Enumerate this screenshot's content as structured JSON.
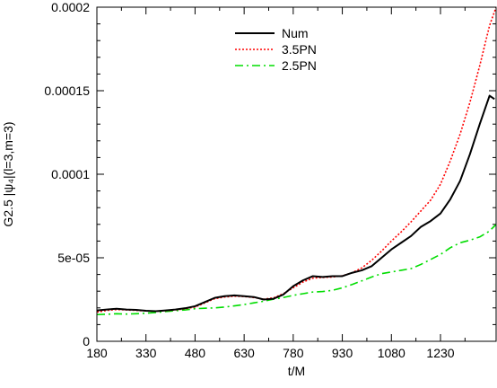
{
  "chart_data": {
    "type": "line",
    "xlabel": "t/M",
    "ylabel": "G2.5 |ψ₄|(l=3,m=3)",
    "xlim": [
      180,
      1400
    ],
    "ylim": [
      0,
      0.0002
    ],
    "xticks": [
      {
        "value": 180,
        "label": "180"
      },
      {
        "value": 330,
        "label": "330"
      },
      {
        "value": 480,
        "label": "480"
      },
      {
        "value": 630,
        "label": "630"
      },
      {
        "value": 780,
        "label": "780"
      },
      {
        "value": 930,
        "label": "930"
      },
      {
        "value": 1080,
        "label": "1080"
      },
      {
        "value": 1230,
        "label": "1230"
      }
    ],
    "yticks": [
      {
        "value": 0,
        "label": "0"
      },
      {
        "value": 5e-05,
        "label": "5e-05"
      },
      {
        "value": 0.0001,
        "label": "0.0001"
      },
      {
        "value": 0.00015,
        "label": "0.00015"
      },
      {
        "value": 0.0002,
        "label": "0.0002"
      }
    ],
    "legend_position": "top-center",
    "series": [
      {
        "name": "Num",
        "color": "#000000",
        "style": "solid",
        "x": [
          180,
          210,
          240,
          270,
          300,
          330,
          360,
          390,
          420,
          450,
          480,
          510,
          540,
          570,
          600,
          630,
          660,
          690,
          720,
          750,
          780,
          810,
          840,
          870,
          900,
          930,
          960,
          990,
          1020,
          1050,
          1080,
          1110,
          1140,
          1170,
          1200,
          1230,
          1260,
          1290,
          1320,
          1350,
          1380,
          1395
        ],
        "y": [
          1.85e-05,
          1.9e-05,
          1.95e-05,
          1.9e-05,
          1.88e-05,
          1.83e-05,
          1.8e-05,
          1.85e-05,
          1.9e-05,
          1.98e-05,
          2.1e-05,
          2.35e-05,
          2.6e-05,
          2.7e-05,
          2.75e-05,
          2.7e-05,
          2.65e-05,
          2.5e-05,
          2.55e-05,
          2.8e-05,
          3.3e-05,
          3.65e-05,
          3.9e-05,
          3.85e-05,
          3.9e-05,
          3.9e-05,
          4.1e-05,
          4.25e-05,
          4.5e-05,
          5e-05,
          5.5e-05,
          5.9e-05,
          6.3e-05,
          6.85e-05,
          7.2e-05,
          7.65e-05,
          8.5e-05,
          9.6e-05,
          0.000112,
          0.00013,
          0.000147,
          0.000145
        ]
      },
      {
        "name": "3.5PN",
        "color": "#ff0000",
        "style": "dotted",
        "x": [
          180,
          210,
          240,
          270,
          300,
          330,
          360,
          390,
          420,
          450,
          480,
          510,
          540,
          570,
          600,
          630,
          660,
          690,
          720,
          750,
          780,
          810,
          840,
          870,
          900,
          930,
          960,
          990,
          1020,
          1050,
          1080,
          1110,
          1140,
          1170,
          1200,
          1230,
          1260,
          1290,
          1320,
          1350,
          1380,
          1400
        ],
        "y": [
          1.75e-05,
          1.85e-05,
          1.9e-05,
          1.88e-05,
          1.85e-05,
          1.82e-05,
          1.8e-05,
          1.83e-05,
          1.88e-05,
          1.95e-05,
          2.05e-05,
          2.3e-05,
          2.55e-05,
          2.65e-05,
          2.7e-05,
          2.68e-05,
          2.62e-05,
          2.52e-05,
          2.6e-05,
          2.85e-05,
          3.2e-05,
          3.55e-05,
          3.78e-05,
          3.82e-05,
          3.85e-05,
          3.92e-05,
          4.1e-05,
          4.4e-05,
          4.85e-05,
          5.4e-05,
          6e-05,
          6.55e-05,
          7.15e-05,
          7.8e-05,
          8.45e-05,
          9.4e-05,
          0.000108,
          0.000124,
          0.000143,
          0.000165,
          0.000189,
          0.0002
        ]
      },
      {
        "name": "2.5PN",
        "color": "#00dd00",
        "style": "dashdot",
        "x": [
          180,
          210,
          240,
          270,
          300,
          330,
          360,
          390,
          420,
          450,
          480,
          510,
          540,
          570,
          600,
          630,
          660,
          690,
          720,
          750,
          780,
          810,
          840,
          870,
          900,
          930,
          960,
          990,
          1020,
          1050,
          1080,
          1110,
          1140,
          1170,
          1200,
          1230,
          1260,
          1290,
          1320,
          1350,
          1380,
          1400
        ],
        "y": [
          1.6e-05,
          1.62e-05,
          1.65e-05,
          1.63e-05,
          1.65e-05,
          1.68e-05,
          1.72e-05,
          1.78e-05,
          1.83e-05,
          1.88e-05,
          1.95e-05,
          1.98e-05,
          2e-05,
          2.05e-05,
          2.12e-05,
          2.2e-05,
          2.3e-05,
          2.4e-05,
          2.52e-05,
          2.62e-05,
          2.75e-05,
          2.85e-05,
          2.95e-05,
          2.98e-05,
          3.05e-05,
          3.2e-05,
          3.4e-05,
          3.62e-05,
          3.85e-05,
          4.05e-05,
          4.15e-05,
          4.25e-05,
          4.35e-05,
          4.6e-05,
          4.9e-05,
          5.2e-05,
          5.6e-05,
          5.9e-05,
          6.05e-05,
          6.25e-05,
          6.6e-05,
          7e-05
        ]
      }
    ]
  }
}
